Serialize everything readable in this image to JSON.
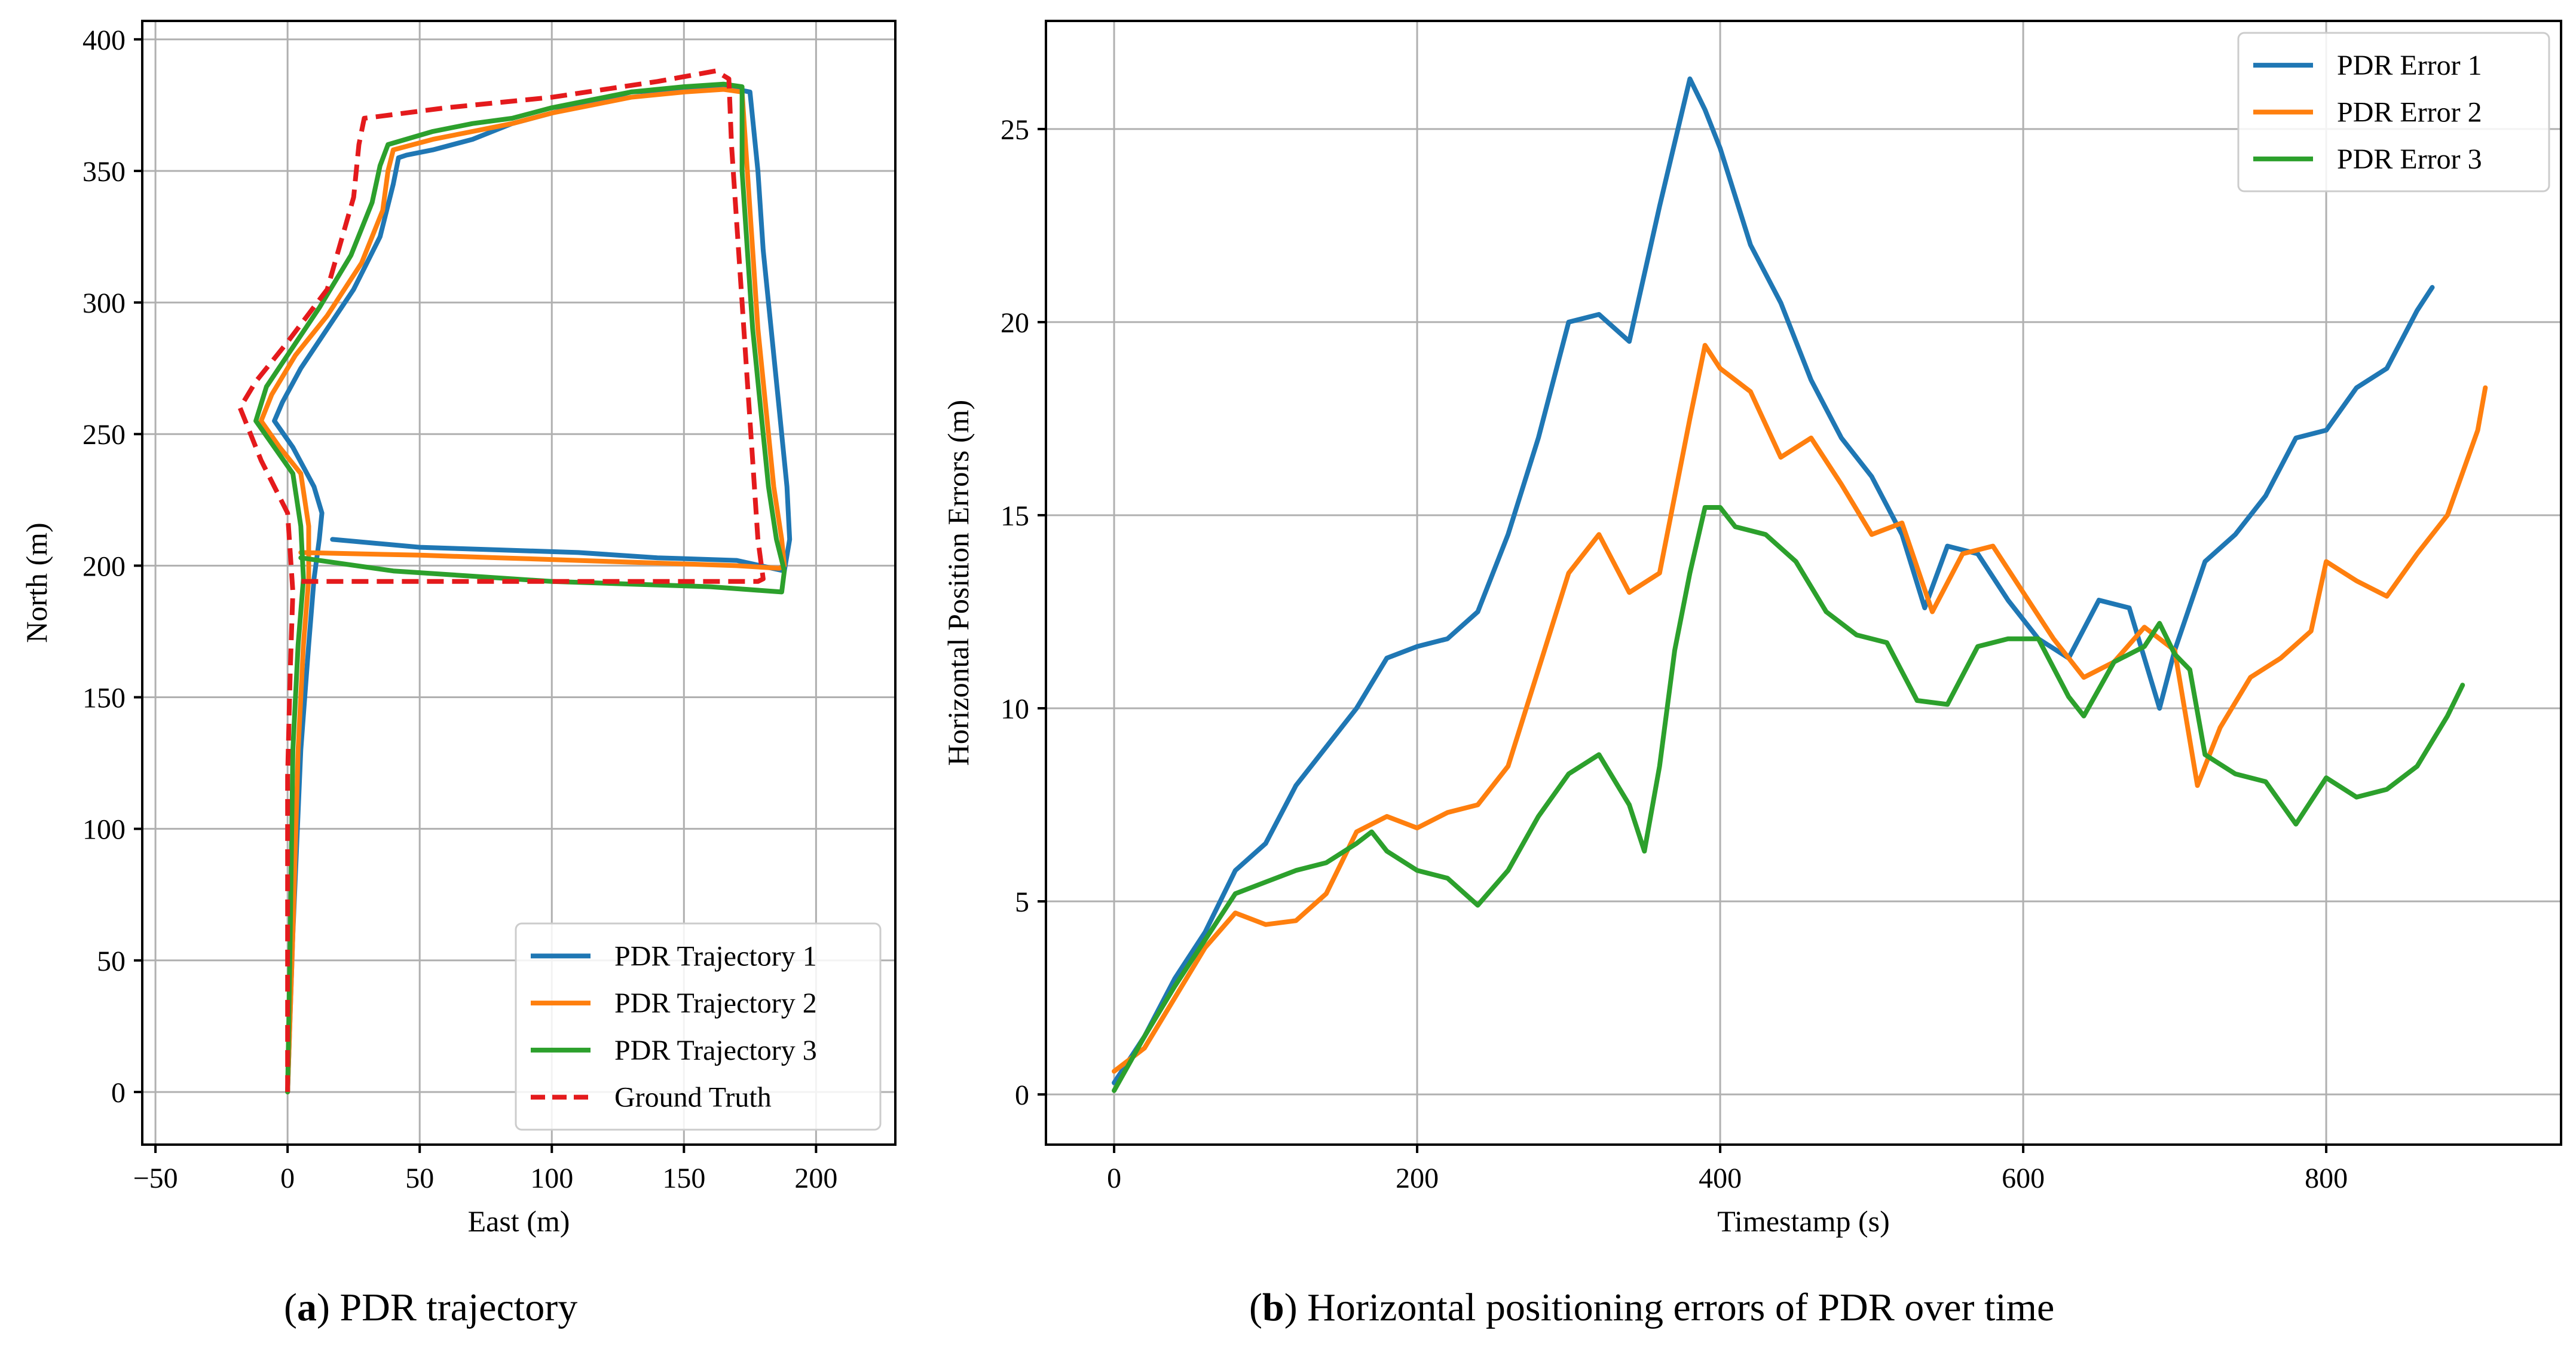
{
  "colors": {
    "series1": "#1f77b4",
    "series2": "#ff7f0e",
    "series3": "#2ca02c",
    "truth": "#e41a1c",
    "grid": "#b0b0b0"
  },
  "captions": {
    "a_label": "a",
    "a_text": ") PDR trajectory",
    "b_label": "b",
    "b_text": ") Horizontal positioning errors of PDR over time"
  },
  "chart_data": [
    {
      "type": "line",
      "title": "",
      "xlabel": "East (m)",
      "ylabel": "North (m)",
      "xlim": [
        -55,
        230
      ],
      "ylim": [
        -20,
        407
      ],
      "xticks": [
        -50,
        0,
        50,
        100,
        150,
        200
      ],
      "xtick_labels": [
        "−50",
        "0",
        "50",
        "100",
        "150",
        "200"
      ],
      "yticks": [
        0,
        50,
        100,
        150,
        200,
        250,
        300,
        350,
        400
      ],
      "ytick_labels": [
        "0",
        "50",
        "100",
        "150",
        "200",
        "250",
        "300",
        "350",
        "400"
      ],
      "grid": true,
      "legend_position": "lower-right",
      "series": [
        {
          "name": "PDR Trajectory 1",
          "style": "solid",
          "x": [
            0,
            2,
            5,
            8,
            10,
            12,
            13,
            10,
            2,
            -5,
            -2,
            5,
            15,
            25,
            35,
            40,
            42,
            45,
            55,
            70,
            85,
            100,
            115,
            130,
            150,
            165,
            175,
            178,
            180,
            183,
            186,
            189,
            190,
            188,
            170,
            140,
            110,
            80,
            50,
            17
          ],
          "y": [
            0,
            60,
            130,
            170,
            195,
            210,
            220,
            230,
            245,
            255,
            262,
            275,
            290,
            305,
            325,
            345,
            355,
            356,
            358,
            362,
            368,
            372,
            376,
            380,
            381,
            382,
            380,
            350,
            320,
            290,
            260,
            230,
            210,
            198,
            202,
            203,
            205,
            206,
            207,
            210
          ]
        },
        {
          "name": "PDR Trajectory 2",
          "style": "solid",
          "x": [
            0,
            2,
            4,
            6,
            8,
            8,
            5,
            -3,
            -10,
            -6,
            3,
            15,
            28,
            36,
            38,
            40,
            55,
            70,
            85,
            100,
            115,
            130,
            150,
            165,
            172,
            174,
            176,
            178,
            181,
            184,
            187,
            188,
            186,
            170,
            140,
            110,
            80,
            50,
            5
          ],
          "y": [
            0,
            60,
            130,
            170,
            195,
            215,
            235,
            245,
            255,
            265,
            280,
            295,
            315,
            335,
            350,
            358,
            362,
            365,
            368,
            372,
            375,
            378,
            380,
            381,
            380,
            350,
            320,
            290,
            260,
            230,
            210,
            200,
            199,
            200,
            201,
            202,
            203,
            204,
            205
          ]
        },
        {
          "name": "PDR Trajectory 3",
          "style": "solid",
          "x": [
            0,
            1,
            2,
            4,
            6,
            5,
            2,
            -5,
            -12,
            -8,
            2,
            12,
            24,
            32,
            35,
            38,
            55,
            70,
            85,
            100,
            115,
            130,
            150,
            165,
            172,
            172,
            174,
            176,
            179,
            182,
            185,
            188,
            187,
            160,
            130,
            100,
            70,
            40,
            5
          ],
          "y": [
            0,
            60,
            130,
            170,
            195,
            215,
            235,
            245,
            255,
            268,
            283,
            298,
            318,
            338,
            352,
            360,
            365,
            368,
            370,
            374,
            377,
            380,
            382,
            383,
            382,
            350,
            320,
            290,
            260,
            230,
            210,
            198,
            190,
            192,
            193,
            194,
            196,
            198,
            203
          ]
        },
        {
          "name": "Ground Truth",
          "style": "dashed",
          "x": [
            0,
            0,
            0,
            1,
            2,
            0,
            -10,
            -18,
            -12,
            0,
            15,
            25,
            27,
            29,
            60,
            100,
            140,
            162,
            167,
            168,
            170,
            172,
            174,
            176,
            178,
            180,
            178,
            150,
            120,
            90,
            60,
            30,
            5
          ],
          "y": [
            0,
            60,
            120,
            160,
            190,
            220,
            240,
            260,
            270,
            285,
            305,
            340,
            360,
            370,
            374,
            378,
            384,
            388,
            385,
            360,
            330,
            300,
            270,
            240,
            210,
            195,
            194,
            194,
            194,
            194,
            194,
            194,
            194
          ]
        }
      ]
    },
    {
      "type": "line",
      "title": "",
      "xlabel": "Timestamp (s)",
      "ylabel": "Horizontal Position Errors (m)",
      "xlim": [
        -45,
        955
      ],
      "ylim": [
        -1.3,
        27.8
      ],
      "xticks": [
        0,
        200,
        400,
        600,
        800
      ],
      "xtick_labels": [
        "0",
        "200",
        "400",
        "600",
        "800"
      ],
      "yticks": [
        0,
        5,
        10,
        15,
        20,
        25
      ],
      "ytick_labels": [
        "0",
        "5",
        "10",
        "15",
        "20",
        "25"
      ],
      "grid": true,
      "legend_position": "upper-right",
      "series": [
        {
          "name": "PDR Error 1",
          "style": "solid",
          "x": [
            0,
            20,
            40,
            60,
            80,
            100,
            120,
            140,
            160,
            180,
            200,
            220,
            240,
            260,
            280,
            300,
            320,
            340,
            360,
            380,
            390,
            400,
            420,
            440,
            460,
            480,
            500,
            520,
            535,
            550,
            570,
            590,
            610,
            630,
            650,
            670,
            690,
            700,
            720,
            740,
            760,
            780,
            800,
            820,
            840,
            860,
            870
          ],
          "y": [
            0.3,
            1.5,
            3.0,
            4.2,
            5.8,
            6.5,
            8.0,
            9.0,
            10.0,
            11.3,
            11.6,
            11.8,
            12.5,
            14.5,
            17.0,
            20.0,
            20.2,
            19.5,
            23.0,
            26.3,
            25.5,
            24.5,
            22.0,
            20.5,
            18.5,
            17.0,
            16.0,
            14.5,
            12.6,
            14.2,
            14.0,
            12.8,
            11.8,
            11.3,
            12.8,
            12.6,
            10.0,
            11.5,
            13.8,
            14.5,
            15.5,
            17.0,
            17.2,
            18.3,
            18.8,
            20.3,
            20.9
          ]
        },
        {
          "name": "PDR Error 2",
          "style": "solid",
          "x": [
            0,
            20,
            40,
            60,
            80,
            100,
            120,
            140,
            160,
            180,
            200,
            220,
            240,
            260,
            280,
            300,
            320,
            340,
            360,
            380,
            390,
            400,
            420,
            440,
            460,
            480,
            500,
            520,
            540,
            560,
            580,
            600,
            620,
            640,
            660,
            680,
            700,
            715,
            730,
            750,
            770,
            790,
            800,
            820,
            840,
            860,
            880,
            900,
            905
          ],
          "y": [
            0.6,
            1.2,
            2.5,
            3.8,
            4.7,
            4.4,
            4.5,
            5.2,
            6.8,
            7.2,
            6.9,
            7.3,
            7.5,
            8.5,
            11.0,
            13.5,
            14.5,
            13.0,
            13.5,
            17.5,
            19.4,
            18.8,
            18.2,
            16.5,
            17.0,
            15.8,
            14.5,
            14.8,
            12.5,
            14.0,
            14.2,
            13.0,
            11.8,
            10.8,
            11.2,
            12.1,
            11.5,
            8.0,
            9.5,
            10.8,
            11.3,
            12.0,
            13.8,
            13.3,
            12.9,
            14.0,
            15.0,
            17.2,
            18.3
          ]
        },
        {
          "name": "PDR Error 3",
          "style": "solid",
          "x": [
            0,
            20,
            40,
            60,
            80,
            100,
            120,
            140,
            160,
            170,
            180,
            200,
            220,
            240,
            260,
            280,
            300,
            320,
            340,
            350,
            360,
            370,
            380,
            390,
            400,
            410,
            430,
            450,
            470,
            490,
            510,
            530,
            550,
            570,
            590,
            610,
            630,
            640,
            660,
            680,
            690,
            700,
            710,
            720,
            740,
            760,
            780,
            800,
            820,
            840,
            860,
            880,
            890
          ],
          "y": [
            0.1,
            1.5,
            2.8,
            4.0,
            5.2,
            5.5,
            5.8,
            6.0,
            6.5,
            6.8,
            6.3,
            5.8,
            5.6,
            4.9,
            5.8,
            7.2,
            8.3,
            8.8,
            7.5,
            6.3,
            8.5,
            11.5,
            13.5,
            15.2,
            15.2,
            14.7,
            14.5,
            13.8,
            12.5,
            11.9,
            11.7,
            10.2,
            10.1,
            11.6,
            11.8,
            11.8,
            10.3,
            9.8,
            11.2,
            11.6,
            12.2,
            11.4,
            11.0,
            8.8,
            8.3,
            8.1,
            7.0,
            8.2,
            7.7,
            7.9,
            8.5,
            9.8,
            10.6
          ]
        }
      ]
    }
  ]
}
